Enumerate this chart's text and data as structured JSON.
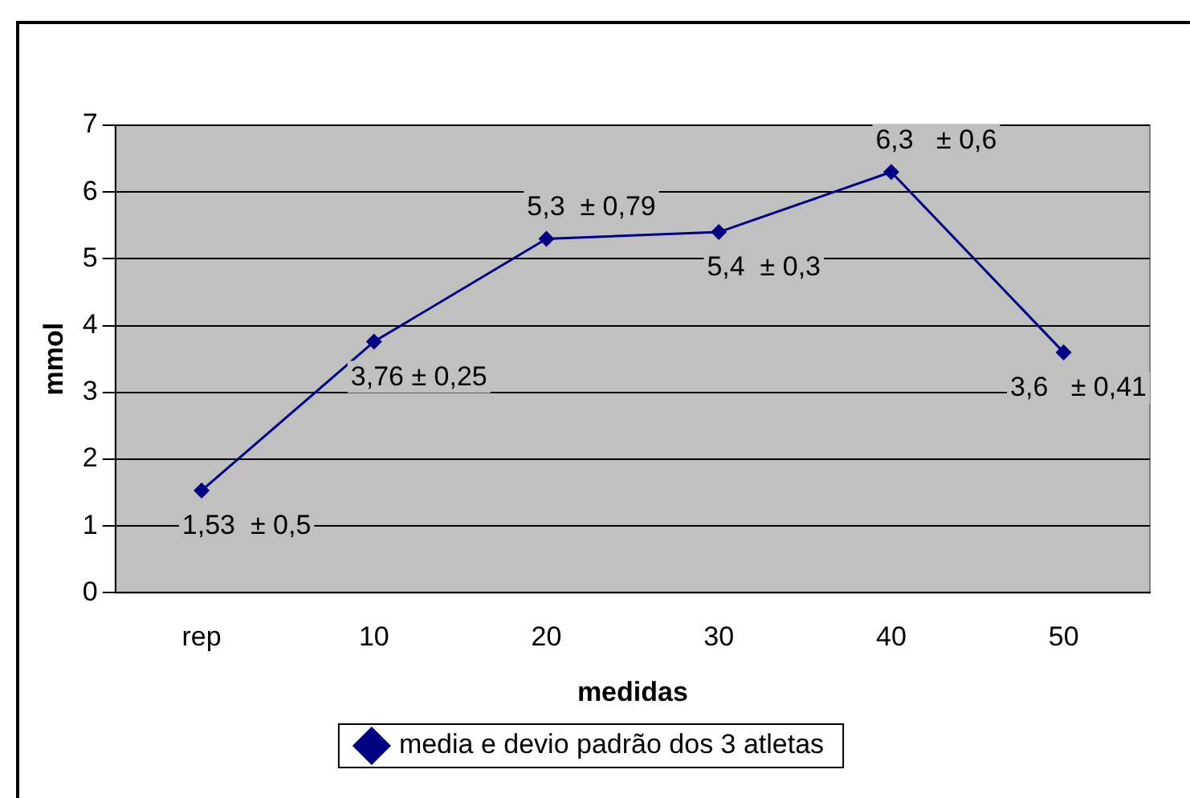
{
  "chart_data": {
    "type": "line",
    "xlabel": "medidas",
    "ylabel": "mmol",
    "categories": [
      "rep",
      "10",
      "20",
      "30",
      "40",
      "50"
    ],
    "series": [
      {
        "name": "media e devio padrão dos 3 atletas",
        "color": "#000080",
        "values": [
          1.53,
          3.76,
          5.3,
          5.4,
          6.3,
          3.6
        ],
        "value_labels": [
          "1,53  ± 0,5",
          "3,76 ± 0,25",
          "5,3  ± 0,79",
          "5,4  ± 0,3",
          "6,3   ± 0,6",
          "3,6   ± 0,41"
        ]
      }
    ],
    "ylim": [
      0,
      7
    ],
    "yticks": [
      0,
      1,
      2,
      3,
      4,
      5,
      6,
      7
    ],
    "grid": "y",
    "legend": "bottom",
    "marker": "diamond",
    "line_style": "solid"
  }
}
